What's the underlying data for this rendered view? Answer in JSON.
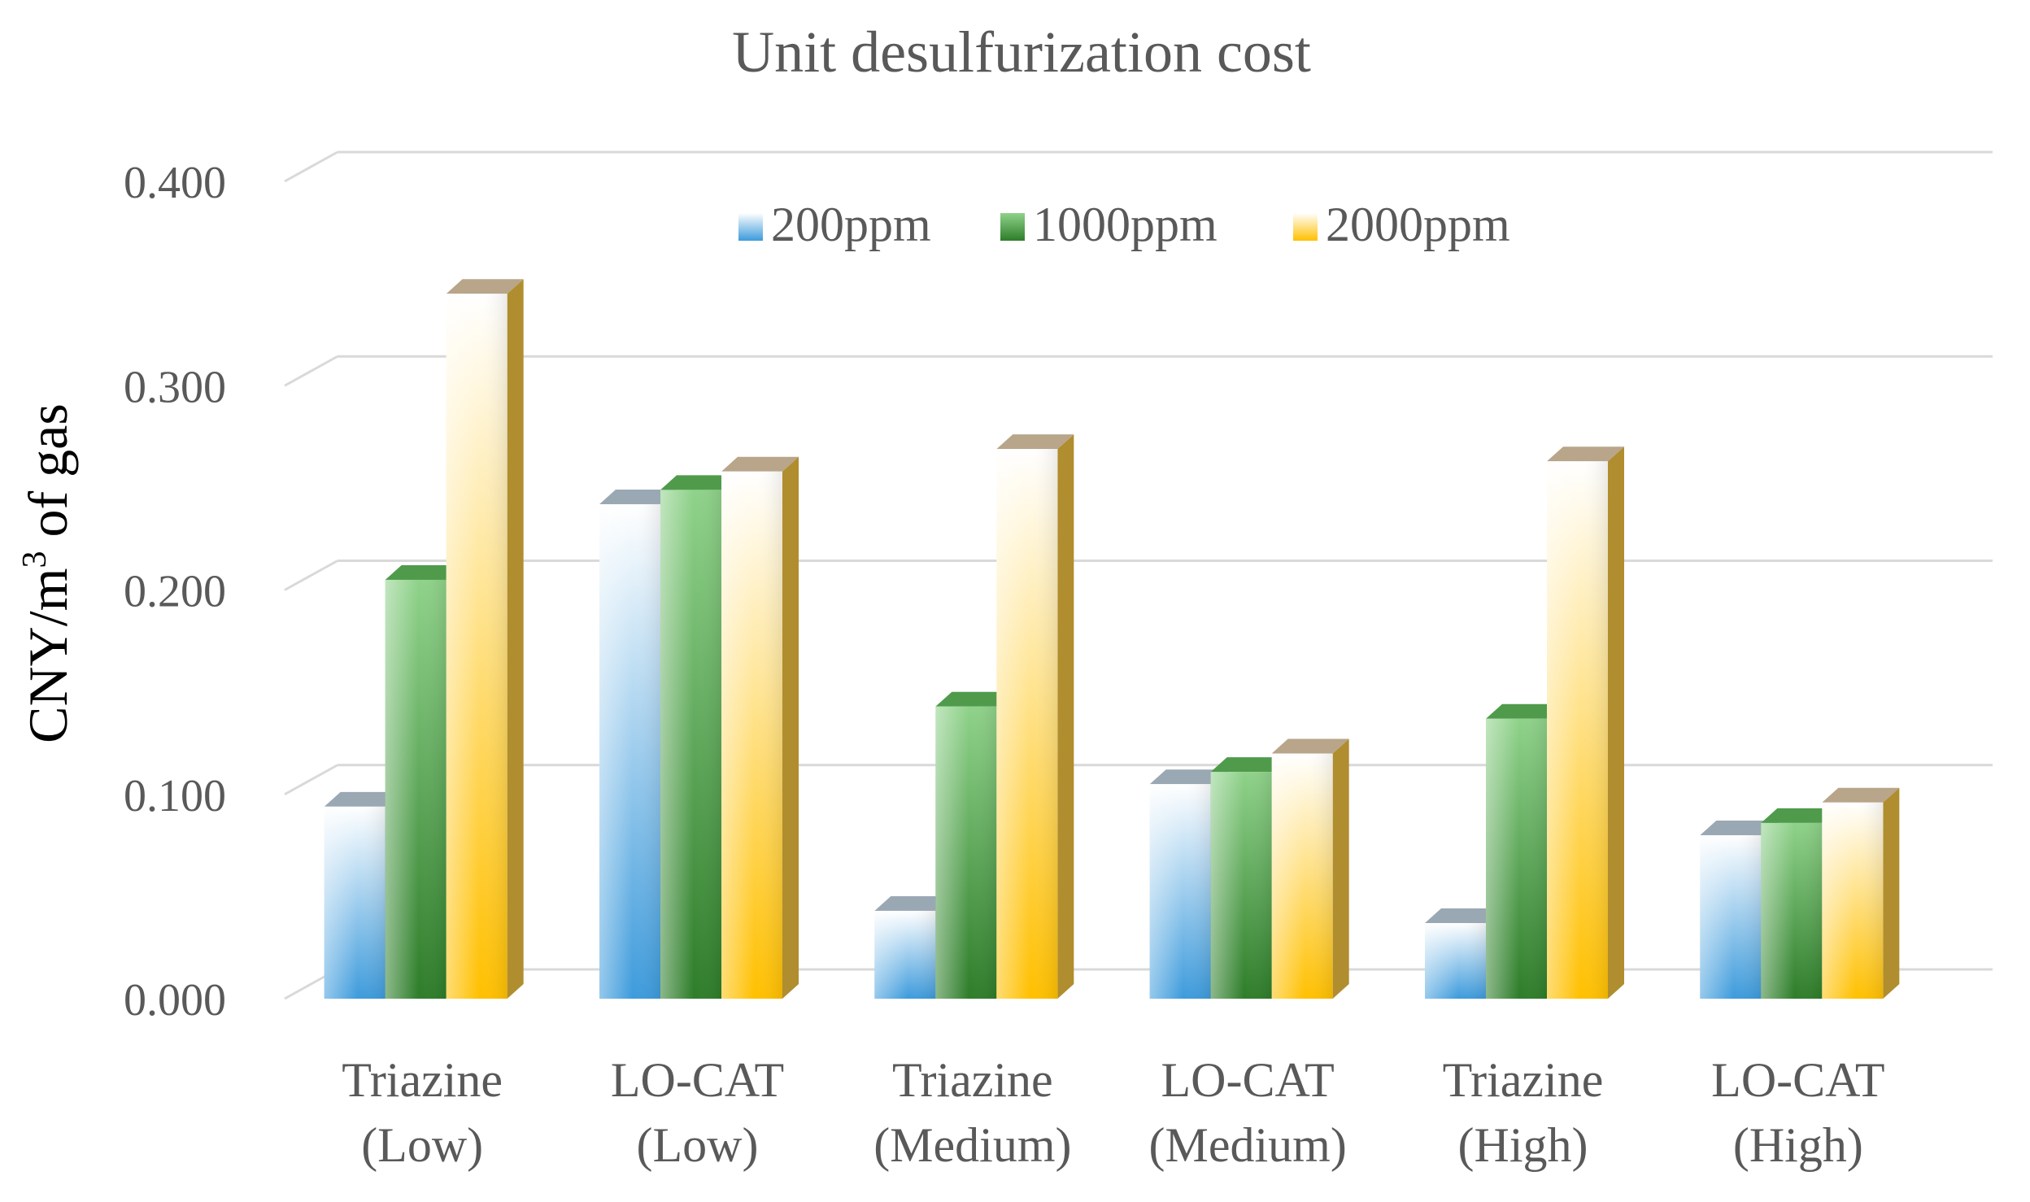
{
  "chart_data": {
    "type": "bar",
    "title": "Unit desulfurization cost",
    "ylabel": "CNY/m",
    "ylabel_sup": "3",
    "ylabel_tail": " of gas",
    "xlabel": "",
    "ylim": [
      0,
      0.4
    ],
    "yticks": [
      "0.000",
      "0.100",
      "0.200",
      "0.300",
      "0.400"
    ],
    "grid": true,
    "legend_position": "top-center",
    "categories": [
      [
        "Triazine",
        "(Low)"
      ],
      [
        "LO-CAT",
        "(Low)"
      ],
      [
        "Triazine",
        "(Medium)"
      ],
      [
        "LO-CAT",
        "(Medium)"
      ],
      [
        "Triazine",
        "(High)"
      ],
      [
        "LO-CAT",
        "(High)"
      ]
    ],
    "series": [
      {
        "name": "200ppm",
        "values": [
          0.094,
          0.242,
          0.043,
          0.105,
          0.037,
          0.08
        ],
        "colors": {
          "light": "#ffffff",
          "dark": "#3d9bdc",
          "top": "#9aa8b4",
          "side": "#4a86b8"
        }
      },
      {
        "name": "1000ppm",
        "values": [
          0.205,
          0.249,
          0.143,
          0.111,
          0.137,
          0.086
        ],
        "colors": {
          "light": "#8fd28a",
          "dark": "#2e7d2a",
          "top": "#4f9b4b",
          "side": "#276e24"
        }
      },
      {
        "name": "2000ppm",
        "values": [
          0.345,
          0.258,
          0.269,
          0.12,
          0.263,
          0.096
        ],
        "colors": {
          "light": "#ffffff",
          "dark": "#ffc000",
          "top": "#b8a58a",
          "side": "#b08d2e"
        }
      }
    ]
  }
}
